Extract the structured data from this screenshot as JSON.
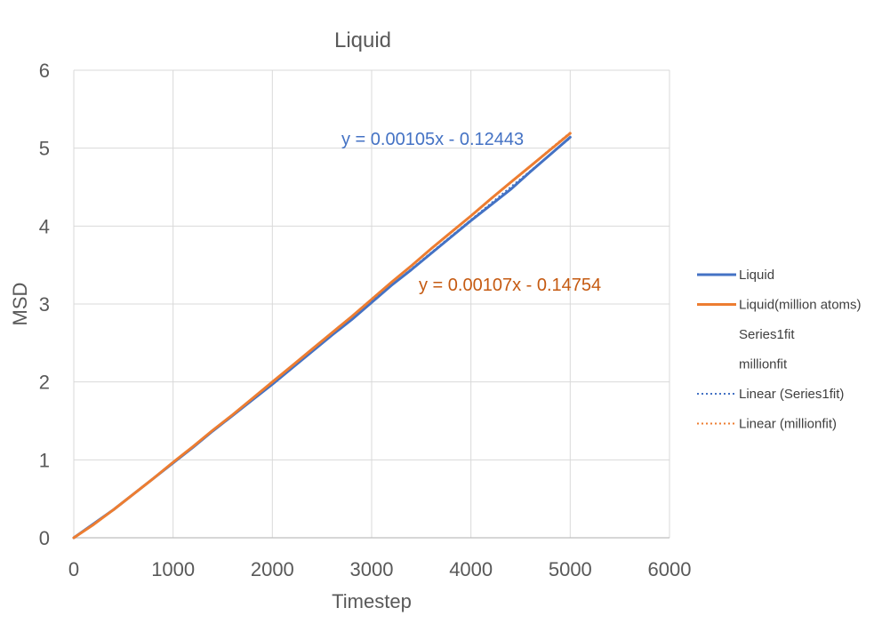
{
  "chart_data": {
    "type": "line",
    "title": "Liquid",
    "xlabel": "Timestep",
    "ylabel": "MSD",
    "xlim": [
      0,
      6000
    ],
    "ylim": [
      0,
      6
    ],
    "xticks": [
      0,
      1000,
      2000,
      3000,
      4000,
      5000,
      6000
    ],
    "yticks": [
      0,
      1,
      2,
      3,
      4,
      5,
      6
    ],
    "xtick_labels": [
      "0",
      "1000",
      "2000",
      "3000",
      "4000",
      "5000",
      "6000"
    ],
    "ytick_labels": [
      "0",
      "1",
      "2",
      "3",
      "4",
      "5",
      "6"
    ],
    "grid": true,
    "legend_position": "right",
    "series": [
      {
        "name": "Liquid",
        "style": "solid",
        "color": "#4472C4",
        "x": [
          0,
          200,
          400,
          600,
          800,
          1000,
          1200,
          1400,
          1600,
          1800,
          2000,
          2200,
          2400,
          2600,
          2800,
          3000,
          3200,
          3400,
          3600,
          3800,
          4000,
          4200,
          4400,
          4600,
          4800,
          5000
        ],
        "y": [
          0,
          0.18,
          0.36,
          0.56,
          0.76,
          0.96,
          1.16,
          1.37,
          1.57,
          1.77,
          1.97,
          2.18,
          2.39,
          2.6,
          2.8,
          3.02,
          3.24,
          3.44,
          3.65,
          3.86,
          4.07,
          4.27,
          4.47,
          4.7,
          4.92,
          5.14
        ]
      },
      {
        "name": "Liquid(million atoms)",
        "style": "solid",
        "color": "#ED7D31",
        "x": [
          0,
          200,
          400,
          600,
          800,
          1000,
          1200,
          1400,
          1600,
          1800,
          2000,
          2200,
          2400,
          2600,
          2800,
          3000,
          3200,
          3400,
          3600,
          3800,
          4000,
          4200,
          4400,
          4600,
          4800,
          5000
        ],
        "y": [
          0,
          0.17,
          0.36,
          0.56,
          0.76,
          0.97,
          1.17,
          1.38,
          1.58,
          1.79,
          2.0,
          2.21,
          2.42,
          2.63,
          2.84,
          3.06,
          3.28,
          3.49,
          3.71,
          3.92,
          4.13,
          4.35,
          4.56,
          4.77,
          4.98,
          5.19
        ]
      },
      {
        "name": "Series1fit",
        "style": "none",
        "color": "",
        "x": [],
        "y": []
      },
      {
        "name": "millionfit",
        "style": "none",
        "color": "",
        "x": [],
        "y": []
      },
      {
        "name": "Linear (Series1fit)",
        "style": "dotted",
        "color": "#4472C4",
        "x": [
          3000,
          3200,
          3400,
          3600,
          3800,
          4000,
          4200,
          4400,
          4600,
          4800,
          5000
        ],
        "y": [
          3.03,
          3.24,
          3.45,
          3.66,
          3.87,
          4.08,
          4.29,
          4.5,
          4.71,
          4.92,
          5.13
        ]
      },
      {
        "name": "Linear (millionfit)",
        "style": "dotted",
        "color": "#ED7D31",
        "x": [
          3000,
          3200,
          3400,
          3600,
          3800,
          4000,
          4200,
          4400,
          4600,
          4800,
          5000
        ],
        "y": [
          3.06,
          3.28,
          3.49,
          3.71,
          3.92,
          4.13,
          4.35,
          4.56,
          4.77,
          4.99,
          5.2
        ]
      }
    ],
    "annotations": [
      {
        "text": "y = 0.00105x - 0.12443",
        "color": "#4472C4"
      },
      {
        "text": "y = 0.00107x - 0.14754",
        "color": "#C55A11"
      }
    ]
  }
}
